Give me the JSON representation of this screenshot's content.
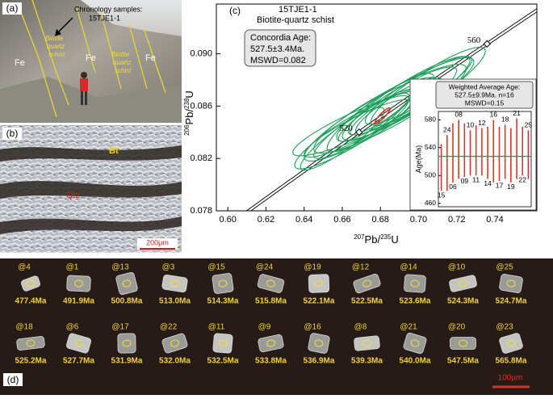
{
  "panel_a": {
    "label": "(a)",
    "annotation": [
      "Chronology samples:",
      "15TJE1-1"
    ],
    "rock_labels": [
      "Fe",
      "Fe",
      "Fe"
    ],
    "schist_labels": [
      [
        "Biotite",
        "quartz",
        "schist"
      ],
      [
        "Biotite",
        "quartz",
        "schist"
      ]
    ]
  },
  "panel_b": {
    "label": "(b)",
    "minerals": [
      "Bt",
      "Qtz"
    ],
    "scale_bar": "200μm"
  },
  "chart_data": {
    "type": "concordia",
    "label": "(c)",
    "title": "15TJE1-1",
    "subtitle": "Biotite-quartz schist",
    "annotation": [
      "Concordia Age:",
      "527.5±3.4Ma.",
      "MSWD=0.082"
    ],
    "x_label": [
      "207",
      "Pb/",
      "235",
      "U"
    ],
    "y_label": [
      "206",
      "Pb/",
      "238",
      "U"
    ],
    "xlim": [
      0.594,
      0.762
    ],
    "xticks": [
      {
        "value": 0.6,
        "label": "0.60"
      },
      0.62,
      0.64,
      0.66,
      0.68,
      {
        "value": 0.7,
        "label": "0.70"
      },
      0.72,
      0.74
    ],
    "ylim": [
      0.078,
      0.0938
    ],
    "yticks": [
      0.078,
      0.082,
      0.086,
      {
        "value": 0.09,
        "label": "0.090"
      }
    ],
    "concordia_ticks": [
      520,
      560
    ],
    "ellipse_color": "#1f9e5c",
    "ellipses": [
      {
        "x": 0.69,
        "y": 0.0862,
        "sx": 0.03,
        "sy": 0.0028
      },
      {
        "x": 0.68,
        "y": 0.0855,
        "sx": 0.028,
        "sy": 0.003
      },
      {
        "x": 0.675,
        "y": 0.085,
        "sx": 0.035,
        "sy": 0.0032
      },
      {
        "x": 0.695,
        "y": 0.0868,
        "sx": 0.032,
        "sy": 0.003
      },
      {
        "x": 0.67,
        "y": 0.0845,
        "sx": 0.025,
        "sy": 0.0025
      },
      {
        "x": 0.685,
        "y": 0.0858,
        "sx": 0.04,
        "sy": 0.0034
      },
      {
        "x": 0.665,
        "y": 0.084,
        "sx": 0.03,
        "sy": 0.0028
      },
      {
        "x": 0.7,
        "y": 0.0872,
        "sx": 0.028,
        "sy": 0.0026
      },
      {
        "x": 0.66,
        "y": 0.0835,
        "sx": 0.022,
        "sy": 0.0024
      },
      {
        "x": 0.678,
        "y": 0.0853,
        "sx": 0.02,
        "sy": 0.002
      },
      {
        "x": 0.705,
        "y": 0.0875,
        "sx": 0.03,
        "sy": 0.003
      },
      {
        "x": 0.672,
        "y": 0.0848,
        "sx": 0.038,
        "sy": 0.0026
      },
      {
        "x": 0.688,
        "y": 0.086,
        "sx": 0.024,
        "sy": 0.0022
      },
      {
        "x": 0.682,
        "y": 0.0856,
        "sx": 0.015,
        "sy": 0.0016
      },
      {
        "x": 0.693,
        "y": 0.0865,
        "sx": 0.036,
        "sy": 0.0032
      },
      {
        "x": 0.668,
        "y": 0.0843,
        "sx": 0.028,
        "sy": 0.0022
      }
    ],
    "concordia_ellipse": {
      "x": 0.6811,
      "y": 0.08527,
      "sx": 0.004,
      "sy": 0.0006,
      "color": "#d9362b"
    },
    "inset": {
      "type": "errorbar",
      "title": [
        "Weighted Average Age:",
        "527.5±9.9Ma. n=16",
        "MSWD=0.15"
      ],
      "y_label": "Age(Ma)",
      "ylim": [
        455,
        592
      ],
      "yticks": [
        460,
        500,
        540,
        580
      ],
      "mean": 527.5,
      "mean_color": "#1f9e5c",
      "bar_color": "#d9362b",
      "bars": [
        {
          "label": "15",
          "low": 478,
          "high": 545
        },
        {
          "label": "24",
          "low": 478,
          "high": 558
        },
        {
          "label": "06",
          "low": 490,
          "high": 575
        },
        {
          "label": "08",
          "low": 495,
          "high": 580
        },
        {
          "label": "09",
          "low": 498,
          "high": 575
        },
        {
          "label": "10",
          "low": 500,
          "high": 565
        },
        {
          "label": "11",
          "low": 500,
          "high": 572
        },
        {
          "label": "12",
          "low": 500,
          "high": 568
        },
        {
          "label": "14",
          "low": 495,
          "high": 570
        },
        {
          "label": "16",
          "low": 490,
          "high": 580
        },
        {
          "label": "17",
          "low": 492,
          "high": 570
        },
        {
          "label": "18",
          "low": 495,
          "high": 573
        },
        {
          "label": "19",
          "low": 490,
          "high": 568
        },
        {
          "label": "21",
          "low": 495,
          "high": 582
        },
        {
          "label": "22",
          "low": 500,
          "high": 570
        },
        {
          "label": "25",
          "low": 495,
          "high": 565
        }
      ]
    }
  },
  "panel_d": {
    "label": "(d)",
    "scale_bar": "100μm",
    "zircons": [
      {
        "spot": "@4",
        "age": "477.4Ma"
      },
      {
        "spot": "@1",
        "age": "491.9Ma"
      },
      {
        "spot": "@13",
        "age": "500.8Ma"
      },
      {
        "spot": "@3",
        "age": "513.0Ma"
      },
      {
        "spot": "@15",
        "age": "514.3Ma"
      },
      {
        "spot": "@24",
        "age": "515.8Ma"
      },
      {
        "spot": "@19",
        "age": "522.1Ma"
      },
      {
        "spot": "@12",
        "age": "522.5Ma"
      },
      {
        "spot": "@14",
        "age": "523.6Ma"
      },
      {
        "spot": "@10",
        "age": "524.3Ma"
      },
      {
        "spot": "@25",
        "age": "524.7Ma"
      },
      {
        "spot": "@18",
        "age": "525.2Ma"
      },
      {
        "spot": "@6",
        "age": "527.7Ma"
      },
      {
        "spot": "@17",
        "age": "531.9Ma"
      },
      {
        "spot": "@22",
        "age": "532.0Ma"
      },
      {
        "spot": "@11",
        "age": "532.5Ma"
      },
      {
        "spot": "@9",
        "age": "533.8Ma"
      },
      {
        "spot": "@16",
        "age": "536.9Ma"
      },
      {
        "spot": "@8",
        "age": "539.3Ma"
      },
      {
        "spot": "@21",
        "age": "540.0Ma"
      },
      {
        "spot": "@20",
        "age": "547.5Ma"
      },
      {
        "spot": "@23",
        "age": "565.8Ma"
      }
    ]
  }
}
